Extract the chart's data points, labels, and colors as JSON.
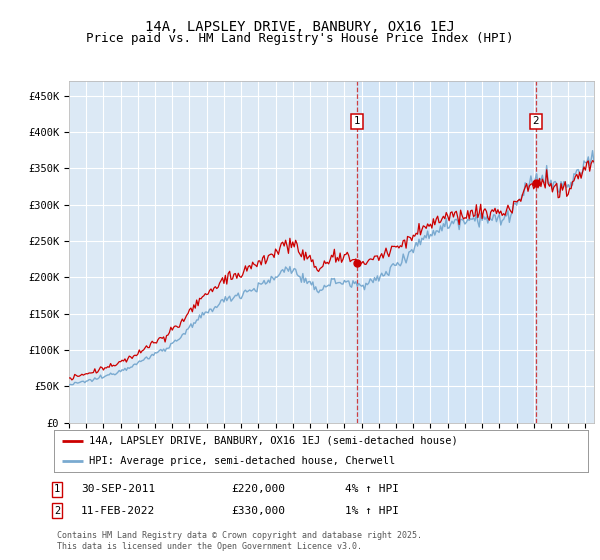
{
  "title": "14A, LAPSLEY DRIVE, BANBURY, OX16 1EJ",
  "subtitle": "Price paid vs. HM Land Registry's House Price Index (HPI)",
  "ylabel_ticks": [
    "£0",
    "£50K",
    "£100K",
    "£150K",
    "£200K",
    "£250K",
    "£300K",
    "£350K",
    "£400K",
    "£450K"
  ],
  "ytick_values": [
    0,
    50000,
    100000,
    150000,
    200000,
    250000,
    300000,
    350000,
    400000,
    450000
  ],
  "ylim": [
    0,
    470000
  ],
  "xlim_start": 1995.0,
  "xlim_end": 2025.5,
  "background_color": "#dce9f5",
  "shade_color": "#d0e4f7",
  "white_bg": "#ffffff",
  "red_line_color": "#cc0000",
  "blue_line_color": "#7aaad0",
  "sale1_x": 2011.75,
  "sale1_y": 220000,
  "sale2_x": 2022.12,
  "sale2_y": 330000,
  "legend_red_label": "14A, LAPSLEY DRIVE, BANBURY, OX16 1EJ (semi-detached house)",
  "legend_blue_label": "HPI: Average price, semi-detached house, Cherwell",
  "footer": "Contains HM Land Registry data © Crown copyright and database right 2025.\nThis data is licensed under the Open Government Licence v3.0.",
  "title_fontsize": 10,
  "subtitle_fontsize": 9,
  "tick_fontsize": 7.5,
  "legend_fontsize": 8
}
